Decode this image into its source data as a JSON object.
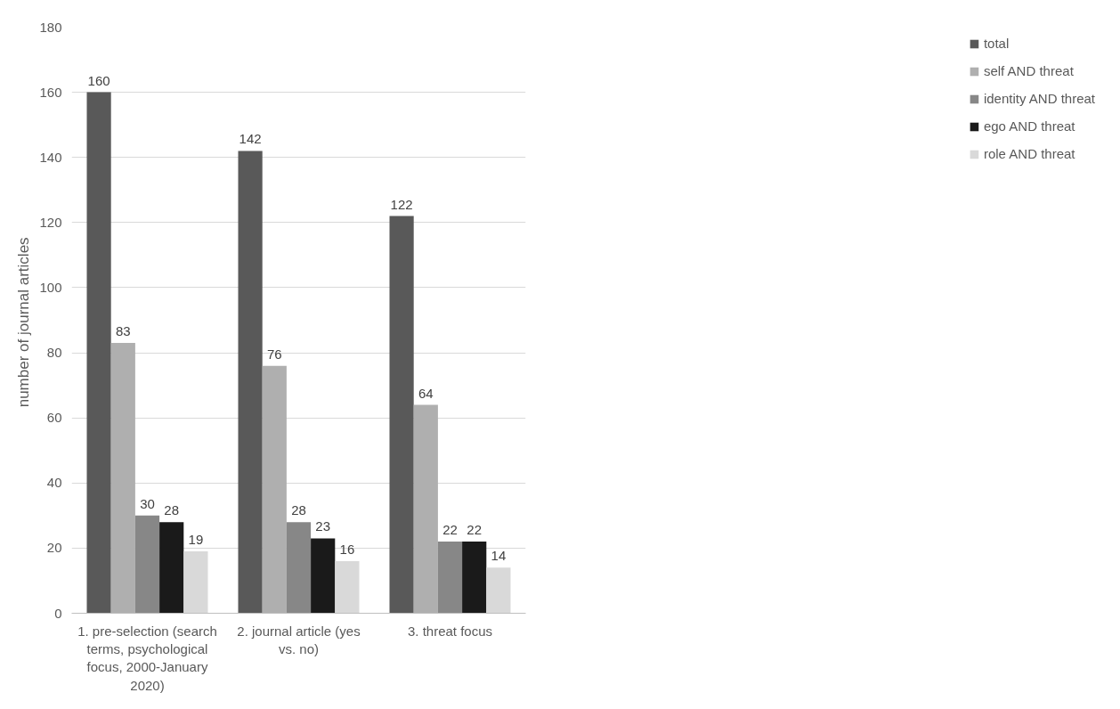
{
  "chart_data": {
    "type": "bar",
    "ylabel": "number of  journal articles",
    "categories": [
      "1. pre-selection (search terms, psychological focus, 2000-January 2020)",
      "2. journal article (yes vs. no)",
      "3. threat focus"
    ],
    "series": [
      {
        "name": "total",
        "color": "#595959",
        "values": [
          160,
          142,
          122
        ]
      },
      {
        "name": "self AND threat",
        "color": "#afafaf",
        "values": [
          83,
          76,
          64
        ]
      },
      {
        "name": "identity AND threat",
        "color": "#878787",
        "values": [
          30,
          28,
          22
        ]
      },
      {
        "name": "ego AND threat",
        "color": "#1a1a1a",
        "values": [
          28,
          23,
          22
        ]
      },
      {
        "name": "role AND threat",
        "color": "#d9d9d9",
        "values": [
          19,
          16,
          14
        ]
      }
    ],
    "ylim": [
      0,
      180
    ],
    "yticks": [
      0,
      20,
      40,
      60,
      80,
      100,
      120,
      140,
      160,
      180
    ],
    "grid": "y",
    "legend": "right",
    "data_labels": true
  }
}
